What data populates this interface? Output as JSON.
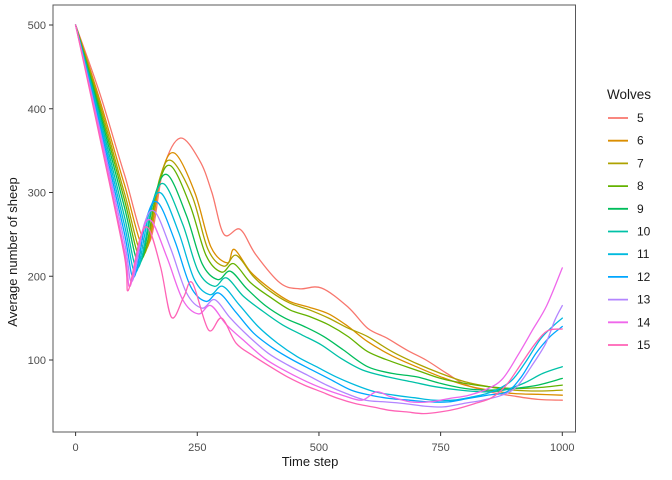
{
  "chart_data": {
    "type": "line",
    "title": "",
    "xlabel": "Time step",
    "ylabel": "Average number of sheep",
    "grid": "off",
    "legend_position": "right",
    "legend_title": "Wolves",
    "x_axis": {
      "lim": [
        0,
        1000
      ],
      "ticks": [
        0,
        250,
        500,
        750,
        1000
      ]
    },
    "y_axis": {
      "lim_display_anchor": [
        500,
        100
      ],
      "ticks": [
        100,
        200,
        300,
        400,
        500
      ]
    },
    "colors": {
      "axis_text": "#4d4d4d",
      "axis_title": "#1a1a1a",
      "tick_mark": "#333333",
      "panel_border": "#58585a",
      "background": "#ffffff"
    },
    "series": [
      {
        "name": "5",
        "color": "#F8766D",
        "points": [
          [
            0,
            500
          ],
          [
            50,
            418
          ],
          [
            100,
            322
          ],
          [
            148,
            238
          ],
          [
            180,
            328
          ],
          [
            215,
            365
          ],
          [
            255,
            338
          ],
          [
            280,
            300
          ],
          [
            305,
            250
          ],
          [
            338,
            256
          ],
          [
            370,
            226
          ],
          [
            420,
            192
          ],
          [
            460,
            185
          ],
          [
            505,
            186
          ],
          [
            560,
            163
          ],
          [
            600,
            138
          ],
          [
            640,
            126
          ],
          [
            680,
            112
          ],
          [
            720,
            100
          ],
          [
            760,
            85
          ],
          [
            800,
            71
          ],
          [
            850,
            62
          ],
          [
            900,
            57
          ],
          [
            950,
            53
          ],
          [
            1000,
            52
          ]
        ]
      },
      {
        "name": "6",
        "color": "#DB8E00",
        "points": [
          [
            0,
            500
          ],
          [
            50,
            410
          ],
          [
            100,
            310
          ],
          [
            144,
            232
          ],
          [
            175,
            320
          ],
          [
            203,
            347
          ],
          [
            245,
            300
          ],
          [
            278,
            235
          ],
          [
            312,
            216
          ],
          [
            326,
            232
          ],
          [
            360,
            205
          ],
          [
            400,
            185
          ],
          [
            440,
            170
          ],
          [
            480,
            163
          ],
          [
            520,
            155
          ],
          [
            560,
            140
          ],
          [
            600,
            122
          ],
          [
            650,
            105
          ],
          [
            700,
            92
          ],
          [
            750,
            80
          ],
          [
            800,
            70
          ],
          [
            850,
            64
          ],
          [
            900,
            60
          ],
          [
            950,
            59
          ],
          [
            1000,
            58
          ]
        ]
      },
      {
        "name": "7",
        "color": "#AEA200",
        "points": [
          [
            0,
            500
          ],
          [
            50,
            405
          ],
          [
            100,
            300
          ],
          [
            140,
            226
          ],
          [
            172,
            315
          ],
          [
            197,
            338
          ],
          [
            240,
            295
          ],
          [
            272,
            232
          ],
          [
            305,
            212
          ],
          [
            330,
            225
          ],
          [
            365,
            200
          ],
          [
            400,
            182
          ],
          [
            440,
            168
          ],
          [
            480,
            160
          ],
          [
            520,
            150
          ],
          [
            560,
            138
          ],
          [
            600,
            128
          ],
          [
            650,
            110
          ],
          [
            700,
            96
          ],
          [
            750,
            84
          ],
          [
            800,
            74
          ],
          [
            850,
            68
          ],
          [
            900,
            64
          ],
          [
            950,
            63
          ],
          [
            1000,
            64
          ]
        ]
      },
      {
        "name": "8",
        "color": "#64B200",
        "points": [
          [
            0,
            500
          ],
          [
            50,
            400
          ],
          [
            100,
            292
          ],
          [
            136,
            221
          ],
          [
            168,
            305
          ],
          [
            195,
            332
          ],
          [
            235,
            285
          ],
          [
            268,
            225
          ],
          [
            300,
            205
          ],
          [
            325,
            215
          ],
          [
            360,
            192
          ],
          [
            400,
            175
          ],
          [
            440,
            160
          ],
          [
            480,
            152
          ],
          [
            520,
            142
          ],
          [
            560,
            128
          ],
          [
            600,
            110
          ],
          [
            650,
            98
          ],
          [
            700,
            88
          ],
          [
            750,
            78
          ],
          [
            800,
            72
          ],
          [
            850,
            68
          ],
          [
            900,
            66
          ],
          [
            950,
            67
          ],
          [
            1000,
            70
          ]
        ]
      },
      {
        "name": "9",
        "color": "#00BD5C",
        "points": [
          [
            0,
            500
          ],
          [
            50,
            395
          ],
          [
            100,
            283
          ],
          [
            132,
            216
          ],
          [
            162,
            295
          ],
          [
            189,
            321
          ],
          [
            228,
            272
          ],
          [
            260,
            215
          ],
          [
            292,
            196
          ],
          [
            318,
            206
          ],
          [
            352,
            185
          ],
          [
            390,
            165
          ],
          [
            430,
            150
          ],
          [
            470,
            140
          ],
          [
            510,
            128
          ],
          [
            550,
            112
          ],
          [
            600,
            92
          ],
          [
            650,
            84
          ],
          [
            700,
            80
          ],
          [
            750,
            72
          ],
          [
            800,
            66
          ],
          [
            850,
            64
          ],
          [
            900,
            66
          ],
          [
            950,
            70
          ],
          [
            1000,
            78
          ]
        ]
      },
      {
        "name": "10",
        "color": "#00C1A7",
        "points": [
          [
            0,
            500
          ],
          [
            50,
            390
          ],
          [
            100,
            272
          ],
          [
            128,
            210
          ],
          [
            158,
            286
          ],
          [
            182,
            310
          ],
          [
            220,
            262
          ],
          [
            252,
            206
          ],
          [
            285,
            188
          ],
          [
            310,
            198
          ],
          [
            345,
            176
          ],
          [
            385,
            158
          ],
          [
            425,
            142
          ],
          [
            465,
            130
          ],
          [
            505,
            118
          ],
          [
            545,
            102
          ],
          [
            590,
            88
          ],
          [
            640,
            80
          ],
          [
            690,
            74
          ],
          [
            740,
            68
          ],
          [
            790,
            64
          ],
          [
            840,
            62
          ],
          [
            880,
            64
          ],
          [
            920,
            72
          ],
          [
            960,
            84
          ],
          [
            1000,
            92
          ]
        ]
      },
      {
        "name": "11",
        "color": "#00BADE",
        "points": [
          [
            0,
            500
          ],
          [
            50,
            385
          ],
          [
            100,
            262
          ],
          [
            124,
            205
          ],
          [
            152,
            278
          ],
          [
            176,
            299
          ],
          [
            212,
            252
          ],
          [
            244,
            196
          ],
          [
            276,
            178
          ],
          [
            302,
            188
          ],
          [
            336,
            166
          ],
          [
            375,
            140
          ],
          [
            415,
            120
          ],
          [
            455,
            104
          ],
          [
            495,
            92
          ],
          [
            535,
            80
          ],
          [
            575,
            70
          ],
          [
            615,
            62
          ],
          [
            655,
            58
          ],
          [
            695,
            55
          ],
          [
            735,
            52
          ],
          [
            775,
            52
          ],
          [
            815,
            56
          ],
          [
            855,
            62
          ],
          [
            895,
            75
          ],
          [
            925,
            98
          ],
          [
            955,
            125
          ],
          [
            980,
            140
          ],
          [
            1000,
            150
          ]
        ]
      },
      {
        "name": "12",
        "color": "#00A6FF",
        "points": [
          [
            0,
            500
          ],
          [
            50,
            380
          ],
          [
            100,
            252
          ],
          [
            120,
            199
          ],
          [
            146,
            270
          ],
          [
            169,
            288
          ],
          [
            204,
            242
          ],
          [
            236,
            188
          ],
          [
            268,
            170
          ],
          [
            294,
            180
          ],
          [
            328,
            158
          ],
          [
            366,
            132
          ],
          [
            406,
            114
          ],
          [
            446,
            100
          ],
          [
            486,
            88
          ],
          [
            526,
            76
          ],
          [
            566,
            64
          ],
          [
            606,
            58
          ],
          [
            646,
            54
          ],
          [
            686,
            52
          ],
          [
            726,
            50
          ],
          [
            766,
            50
          ],
          [
            806,
            54
          ],
          [
            846,
            58
          ],
          [
            886,
            62
          ],
          [
            916,
            80
          ],
          [
            946,
            108
          ],
          [
            975,
            128
          ],
          [
            1000,
            140
          ]
        ]
      },
      {
        "name": "13",
        "color": "#B385FF",
        "points": [
          [
            0,
            500
          ],
          [
            50,
            375
          ],
          [
            100,
            242
          ],
          [
            116,
            194
          ],
          [
            141,
            262
          ],
          [
            163,
            277
          ],
          [
            196,
            232
          ],
          [
            228,
            180
          ],
          [
            260,
            162
          ],
          [
            286,
            172
          ],
          [
            318,
            150
          ],
          [
            356,
            128
          ],
          [
            396,
            108
          ],
          [
            436,
            94
          ],
          [
            476,
            82
          ],
          [
            516,
            70
          ],
          [
            556,
            60
          ],
          [
            596,
            52
          ],
          [
            636,
            50
          ],
          [
            676,
            48
          ],
          [
            716,
            45
          ],
          [
            756,
            44
          ],
          [
            796,
            48
          ],
          [
            836,
            52
          ],
          [
            876,
            58
          ],
          [
            906,
            68
          ],
          [
            936,
            92
          ],
          [
            966,
            120
          ],
          [
            985,
            148
          ],
          [
            1000,
            165
          ]
        ]
      },
      {
        "name": "14",
        "color": "#EF67EB",
        "points": [
          [
            0,
            500
          ],
          [
            50,
            370
          ],
          [
            100,
            232
          ],
          [
            112,
            188
          ],
          [
            136,
            252
          ],
          [
            156,
            266
          ],
          [
            188,
            222
          ],
          [
            220,
            172
          ],
          [
            252,
            155
          ],
          [
            278,
            165
          ],
          [
            310,
            142
          ],
          [
            348,
            122
          ],
          [
            388,
            102
          ],
          [
            428,
            88
          ],
          [
            468,
            76
          ],
          [
            508,
            66
          ],
          [
            548,
            58
          ],
          [
            588,
            52
          ],
          [
            618,
            62
          ],
          [
            648,
            56
          ],
          [
            688,
            50
          ],
          [
            728,
            50
          ],
          [
            768,
            54
          ],
          [
            808,
            58
          ],
          [
            848,
            66
          ],
          [
            878,
            78
          ],
          [
            908,
            105
          ],
          [
            938,
            135
          ],
          [
            968,
            165
          ],
          [
            1000,
            210
          ]
        ]
      },
      {
        "name": "15",
        "color": "#FF63B6",
        "points": [
          [
            0,
            500
          ],
          [
            50,
            365
          ],
          [
            100,
            225
          ],
          [
            108,
            183
          ],
          [
            132,
            244
          ],
          [
            150,
            257
          ],
          [
            175,
            210
          ],
          [
            197,
            151
          ],
          [
            222,
            175
          ],
          [
            240,
            192
          ],
          [
            273,
            136
          ],
          [
            300,
            150
          ],
          [
            330,
            120
          ],
          [
            365,
            105
          ],
          [
            400,
            92
          ],
          [
            435,
            80
          ],
          [
            470,
            70
          ],
          [
            505,
            62
          ],
          [
            540,
            54
          ],
          [
            575,
            48
          ],
          [
            610,
            44
          ],
          [
            645,
            40
          ],
          [
            680,
            38
          ],
          [
            715,
            36
          ],
          [
            750,
            38
          ],
          [
            785,
            42
          ],
          [
            820,
            48
          ],
          [
            855,
            55
          ],
          [
            885,
            70
          ],
          [
            915,
            95
          ],
          [
            945,
            120
          ],
          [
            970,
            135
          ],
          [
            1000,
            137
          ]
        ]
      }
    ]
  }
}
